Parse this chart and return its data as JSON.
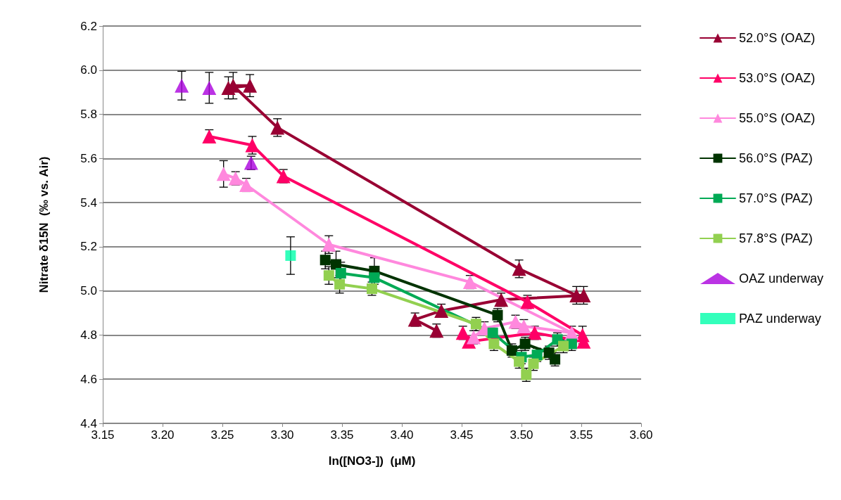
{
  "chart_data": {
    "type": "line",
    "xlabel": "ln([NO3-])  (μM)",
    "ylabel": "Nitrate δ15N  (‰ vs. Air)",
    "xlim": [
      3.15,
      3.6
    ],
    "ylim": [
      4.4,
      6.2
    ],
    "xticks": [
      3.15,
      {
        "value": 3.2,
        "label": "3.20"
      },
      3.25,
      {
        "value": 3.3,
        "label": "3.30"
      },
      3.35,
      {
        "value": 3.4,
        "label": "3.40"
      },
      3.45,
      {
        "value": 3.5,
        "label": "3.50"
      },
      3.55,
      {
        "value": 3.6,
        "label": "3.60"
      }
    ],
    "yticks": [
      4.4,
      4.6,
      4.8,
      {
        "value": 5.0,
        "label": "5.0"
      },
      5.2,
      5.4,
      5.6,
      5.8,
      {
        "value": 6.0,
        "label": "6.0"
      },
      6.2
    ],
    "grid": "y",
    "legend": "right",
    "line_style": "solid",
    "series": [
      {
        "name": "52.0°S (OAZ)",
        "color": "#990033",
        "marker": "triangle",
        "x": [
          3.255,
          3.273,
          3.259,
          3.296,
          3.498,
          3.546,
          3.552,
          3.483,
          3.433,
          3.411,
          3.429
        ],
        "values": [
          5.92,
          5.93,
          5.93,
          5.74,
          5.1,
          4.98,
          4.98,
          4.96,
          4.91,
          4.87,
          4.82
        ],
        "errors": [
          0.05,
          0.05,
          0.06,
          0.04,
          0.04,
          0.04,
          0.04,
          0.03,
          0.03,
          0.03,
          0.03
        ]
      },
      {
        "name": "53.0°S (OAZ)",
        "color": "#ff0066",
        "marker": "triangle",
        "x": [
          3.239,
          3.275,
          3.301,
          3.505,
          3.551,
          3.552,
          3.511,
          3.456,
          3.451
        ],
        "values": [
          5.7,
          5.66,
          5.52,
          4.95,
          4.8,
          4.77,
          4.81,
          4.77,
          4.81
        ],
        "errors": [
          0.03,
          0.04,
          0.03,
          0.03,
          0.04,
          null,
          0.03,
          null,
          0.03
        ]
      },
      {
        "name": "55.0°S (OAZ)",
        "color": "#ff88dd",
        "marker": "triangle",
        "x": [
          3.251,
          3.261,
          3.27,
          3.339,
          3.457,
          3.542,
          3.502,
          3.495,
          3.469,
          3.46
        ],
        "values": [
          5.53,
          5.51,
          5.48,
          5.21,
          5.04,
          4.81,
          4.84,
          4.86,
          4.83,
          4.79
        ],
        "errors": [
          0.06,
          0.03,
          0.03,
          0.04,
          0.03,
          0.03,
          0.03,
          0.03,
          0.03,
          0.03
        ]
      },
      {
        "name": "56.0°S (PAZ)",
        "color": "#003300",
        "marker": "square",
        "x": [
          3.336,
          3.345,
          3.377,
          3.48,
          3.492,
          3.503,
          3.523,
          3.528
        ],
        "values": [
          5.14,
          5.12,
          5.09,
          4.89,
          4.73,
          4.76,
          4.72,
          4.69
        ],
        "errors": [
          0.04,
          0.06,
          0.06,
          0.03,
          0.03,
          0.03,
          0.03,
          0.03
        ]
      },
      {
        "name": "57.0°S (PAZ)",
        "color": "#00aa55",
        "marker": "square",
        "x": [
          3.349,
          3.377,
          3.476,
          3.5,
          3.513,
          3.53,
          3.542
        ],
        "values": [
          5.08,
          5.06,
          4.81,
          4.7,
          4.71,
          4.78,
          4.76
        ],
        "errors": [
          0.05,
          null,
          null,
          0.03,
          0.03,
          0.03,
          0.03
        ]
      },
      {
        "name": "57.8°S (PAZ)",
        "color": "#92d050",
        "marker": "square",
        "x": [
          3.339,
          3.348,
          3.375,
          3.462,
          3.477,
          3.498,
          3.504,
          3.51,
          3.535
        ],
        "values": [
          5.07,
          5.03,
          5.01,
          4.85,
          4.76,
          4.68,
          4.62,
          4.67,
          4.75
        ],
        "errors": [
          0.04,
          0.04,
          0.03,
          0.03,
          0.03,
          0.03,
          0.03,
          0.03,
          0.03
        ]
      },
      {
        "name": "OAZ underway",
        "type": "scatter",
        "color": "#aa00dd",
        "marker": "triangle",
        "x": [
          3.216,
          3.239,
          3.274
        ],
        "values": [
          5.93,
          5.92,
          5.58
        ],
        "errors": [
          0.065,
          0.07,
          0.03
        ]
      },
      {
        "name": "PAZ underway",
        "type": "scatter",
        "color": "#00ffaa",
        "marker": "square",
        "x": [
          3.307
        ],
        "values": [
          5.16
        ],
        "errors": [
          0.085
        ]
      }
    ]
  }
}
